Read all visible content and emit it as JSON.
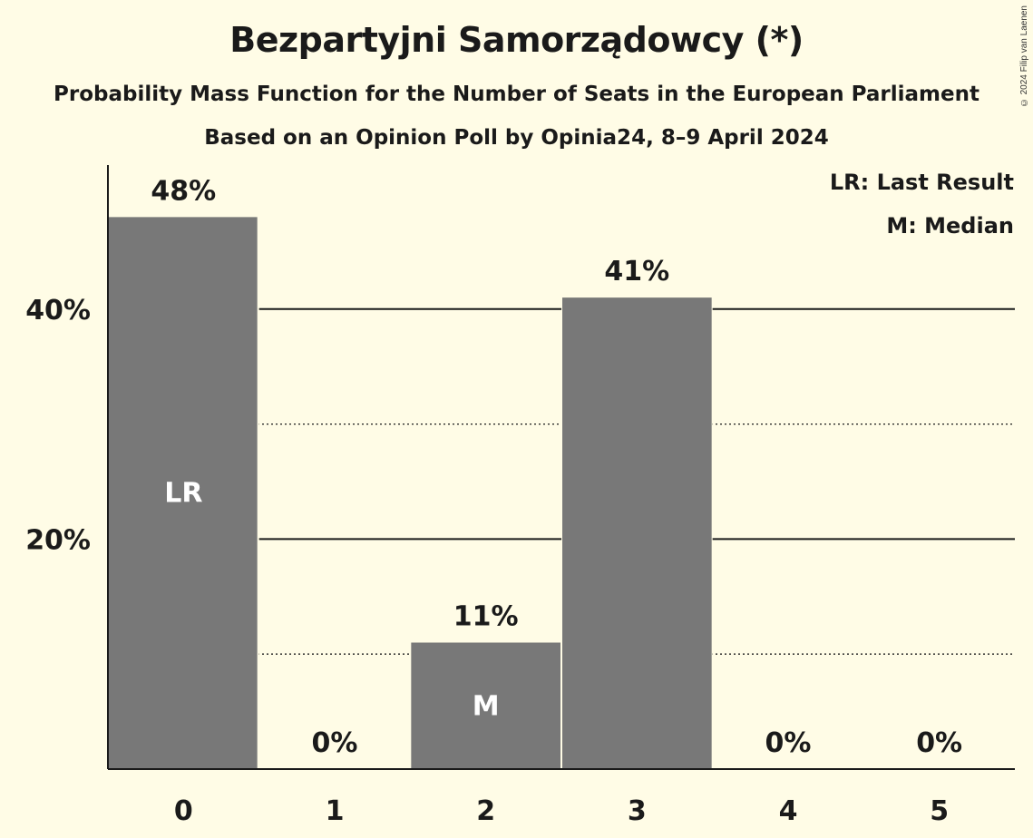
{
  "chart_data": {
    "type": "bar",
    "title": "Bezpartyjni Samorządowcy (*)",
    "subtitle": "Probability Mass Function for the Number of Seats in the European Parliament",
    "subtitle2": "Based on an Opinion Poll by Opinia24, 8–9 April 2024",
    "categories": [
      "0",
      "1",
      "2",
      "3",
      "4",
      "5"
    ],
    "values": [
      48,
      0,
      11,
      41,
      0,
      0
    ],
    "value_labels": [
      "48%",
      "0%",
      "11%",
      "41%",
      "0%",
      "0%"
    ],
    "bar_markers": [
      "LR",
      "",
      "M",
      "",
      "",
      ""
    ],
    "ylim": [
      0,
      52.5
    ],
    "yticks": [
      {
        "value": 20,
        "label": "20%"
      },
      {
        "value": 40,
        "label": "40%"
      }
    ],
    "minor_gridlines": [
      10,
      30
    ],
    "legend": [
      "LR: Last Result",
      "M: Median"
    ],
    "legend_position": "top-right",
    "bar_color": "#787878",
    "background_color": "#FFFCE6"
  },
  "copyright": "© 2024 Filip van Laenen"
}
